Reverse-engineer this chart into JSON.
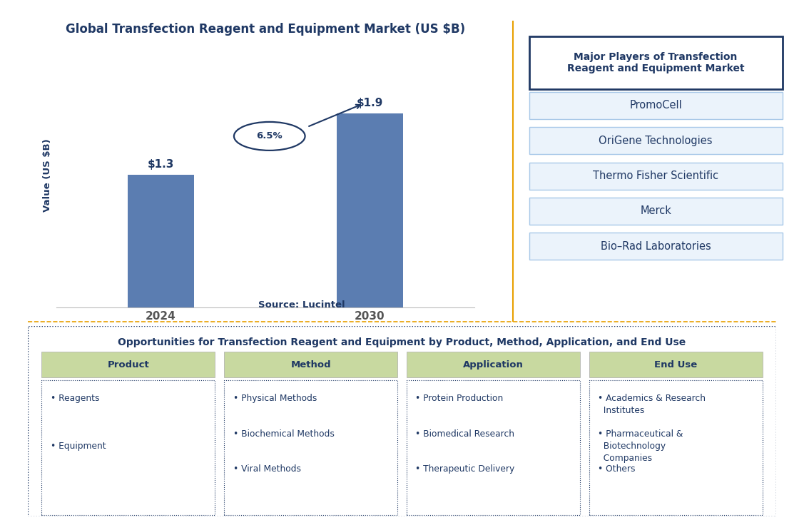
{
  "title": "Global Transfection Reagent and Equipment Market (US $B)",
  "title_color": "#1F3864",
  "bar_years": [
    "2024",
    "2030"
  ],
  "bar_values": [
    1.3,
    1.9
  ],
  "bar_color": "#5B7DB1",
  "bar_labels": [
    "$1.3",
    "$1.9"
  ],
  "cagr_text": "6.5%",
  "ylabel": "Value (US $B)",
  "source_text": "Source: Lucintel",
  "source_color": "#1F3864",
  "right_panel_title": "Major Players of Transfection\nReagent and Equipment Market",
  "right_panel_title_color": "#1F3864",
  "right_panel_title_box_color": "#1F3864",
  "players": [
    "PromoCell",
    "OriGene Technologies",
    "Thermo Fisher Scientific",
    "Merck",
    "Bio–Rad Laboratories"
  ],
  "player_box_fill": "#EBF3FB",
  "player_text_color": "#1F3864",
  "divider_color": "#E8A000",
  "bottom_title": "Opportunities for Transfection Reagent and Equipment by Product, Method, Application, and End Use",
  "bottom_title_color": "#1F3864",
  "bottom_cols": [
    "Product",
    "Method",
    "Application",
    "End Use"
  ],
  "bottom_col_header_color": "#C8D9A0",
  "bottom_col_header_text_color": "#1F3864",
  "bottom_items": [
    [
      "• Reagents",
      "• Equipment"
    ],
    [
      "• Physical Methods",
      "• Biochemical Methods",
      "• Viral Methods"
    ],
    [
      "• Protein Production",
      "• Biomedical Research",
      "• Therapeutic Delivery"
    ],
    [
      "• Academics & Research\n  Institutes",
      "• Pharmaceutical &\n  Biotechnology\n  Companies",
      "• Others"
    ]
  ],
  "bottom_item_color": "#1F3864",
  "bottom_box_border": "#1F3864",
  "dashed_border_color": "#1F3864",
  "background_color": "#FFFFFF"
}
